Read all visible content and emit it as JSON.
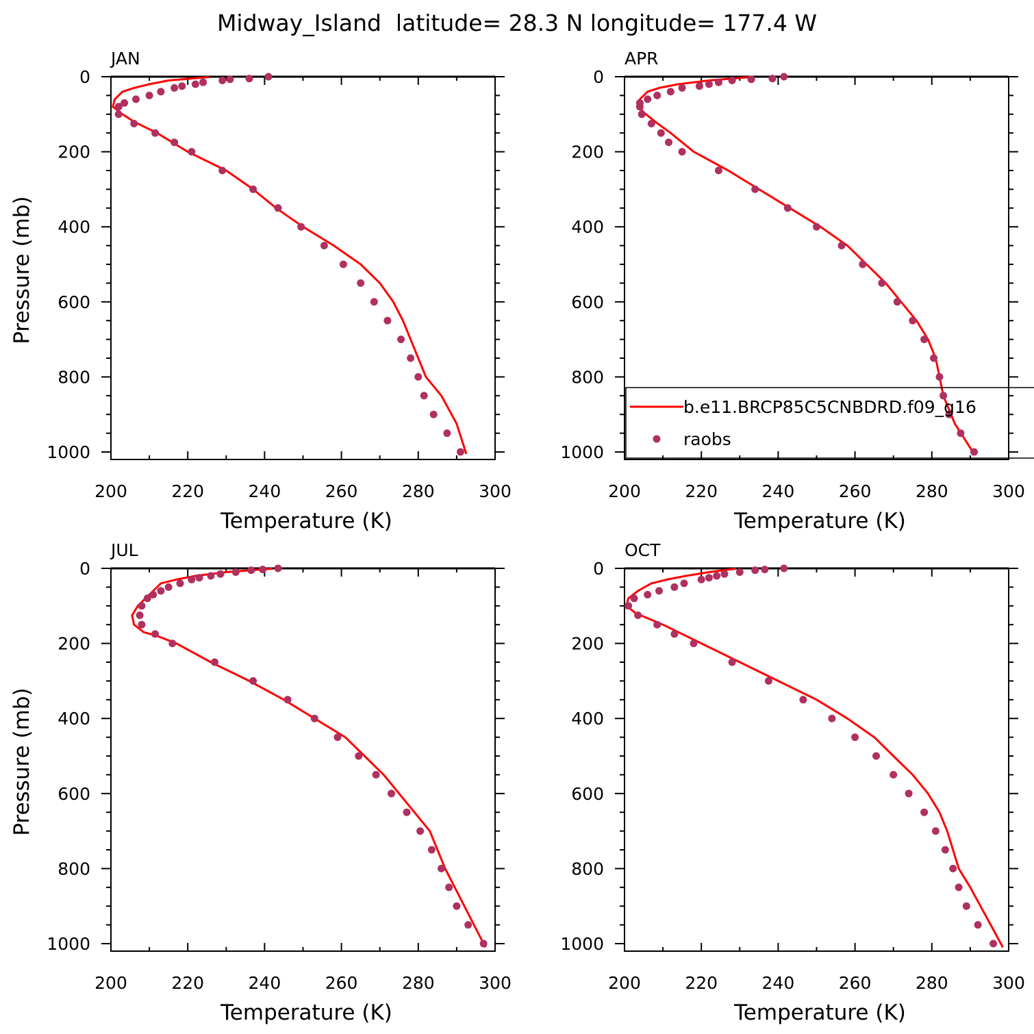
{
  "title": "Midway_Island  latitude= 28.3 N longitude= 177.4 W",
  "chart_data": [
    {
      "type": "line",
      "panel": "JAN",
      "xlabel": "Temperature (K)",
      "ylabel": "Pressure (mb)",
      "xlim": [
        200,
        300
      ],
      "ylim": [
        1020,
        0
      ],
      "xticks": [
        "200",
        "220",
        "240",
        "260",
        "280",
        "300"
      ],
      "yticks": [
        "0",
        "200",
        "400",
        "600",
        "800",
        "1000"
      ],
      "series": [
        {
          "name": "b.e11.BRCP85C5CNBDRD.f09_g16",
          "style": "line",
          "color": "#ff0000",
          "x": [
            225.5,
            215,
            210,
            206,
            203,
            201,
            200.5,
            203,
            206,
            212,
            220,
            230,
            237,
            243,
            250,
            258,
            265,
            270,
            273.5,
            276,
            278,
            280,
            282,
            286,
            290,
            292.5
          ],
          "y": [
            1,
            10,
            20,
            30,
            40,
            60,
            80,
            100,
            120,
            150,
            200,
            250,
            300,
            350,
            400,
            450,
            500,
            550,
            600,
            650,
            700,
            750,
            800,
            850,
            925,
            1005
          ]
        },
        {
          "name": "raobs",
          "style": "points",
          "color": "#b03060",
          "x": [
            241,
            236,
            231,
            229,
            224,
            222,
            218.5,
            216.5,
            213,
            210,
            206.5,
            203.5,
            202,
            202,
            206,
            211.5,
            216.5,
            221,
            229,
            237,
            243.5,
            249.5,
            255.5,
            260.5,
            265,
            268.5,
            272,
            275.5,
            278,
            280,
            281.5,
            284,
            287.5,
            291
          ],
          "y": [
            0,
            5,
            7,
            10,
            15,
            20,
            25,
            30,
            40,
            50,
            60,
            70,
            80,
            100,
            125,
            150,
            175,
            200,
            250,
            300,
            350,
            400,
            450,
            500,
            550,
            600,
            650,
            700,
            750,
            800,
            850,
            900,
            950,
            1000
          ]
        }
      ]
    },
    {
      "type": "line",
      "panel": "APR",
      "xlabel": "Temperature (K)",
      "ylabel": "",
      "xlim": [
        200,
        300
      ],
      "ylim": [
        1020,
        0
      ],
      "xticks": [
        "200",
        "220",
        "240",
        "260",
        "280",
        "300"
      ],
      "yticks": [
        "0",
        "200",
        "400",
        "600",
        "800",
        "1000"
      ],
      "series": [
        {
          "name": "b.e11.BRCP85C5CNBDRD.f09_g16",
          "style": "line",
          "color": "#ff0000",
          "x": [
            233,
            222,
            214,
            209,
            206,
            204,
            203.5,
            205,
            208,
            212,
            218,
            227,
            235,
            243,
            251,
            258,
            263,
            268,
            272,
            276,
            279,
            281,
            282,
            283,
            286,
            291
          ],
          "y": [
            1,
            10,
            20,
            30,
            40,
            60,
            75,
            95,
            120,
            150,
            200,
            250,
            300,
            350,
            400,
            450,
            500,
            550,
            600,
            650,
            700,
            750,
            800,
            850,
            925,
            1005
          ]
        },
        {
          "name": "raobs",
          "style": "points",
          "color": "#b03060",
          "x": [
            241.5,
            238.5,
            233,
            228,
            224.5,
            222,
            219.5,
            215,
            212,
            208.5,
            206,
            204,
            204,
            204.5,
            207,
            209.5,
            211.5,
            215,
            224.5,
            234,
            242.5,
            250,
            256.5,
            262,
            267,
            271,
            275,
            278,
            280.5,
            282,
            283,
            284.5,
            287.5,
            291
          ],
          "y": [
            0,
            5,
            7,
            10,
            15,
            20,
            25,
            30,
            40,
            50,
            60,
            70,
            80,
            100,
            125,
            150,
            175,
            200,
            250,
            300,
            350,
            400,
            450,
            500,
            550,
            600,
            650,
            700,
            750,
            800,
            850,
            900,
            950,
            1000
          ]
        }
      ],
      "legend": {
        "position": "bottom-right",
        "entries": [
          "b.e11.BRCP85C5CNBDRD.f09_g16",
          "raobs"
        ]
      }
    },
    {
      "type": "line",
      "panel": "JUL",
      "xlabel": "Temperature (K)",
      "ylabel": "Pressure (mb)",
      "xlim": [
        200,
        300
      ],
      "ylim": [
        1020,
        0
      ],
      "xticks": [
        "200",
        "220",
        "240",
        "260",
        "280",
        "300"
      ],
      "yticks": [
        "0",
        "200",
        "400",
        "600",
        "800",
        "1000"
      ],
      "series": [
        {
          "name": "b.e11.BRCP85C5CNBDRD.f09_g16",
          "style": "line",
          "color": "#ff0000",
          "x": [
            242,
            230,
            222,
            217,
            213,
            211,
            209,
            207,
            205.5,
            206,
            208.5,
            212,
            217,
            226,
            236,
            245,
            253,
            261,
            266,
            271,
            275,
            279,
            283,
            287,
            292,
            297.5
          ],
          "y": [
            1,
            10,
            20,
            30,
            40,
            60,
            80,
            100,
            125,
            150,
            170,
            180,
            200,
            250,
            300,
            350,
            400,
            450,
            500,
            550,
            600,
            650,
            700,
            800,
            900,
            1010
          ]
        },
        {
          "name": "raobs",
          "style": "points",
          "color": "#b03060",
          "x": [
            243.5,
            239.5,
            236.5,
            232.5,
            228.5,
            226,
            223,
            221,
            218,
            215,
            213,
            211,
            209.5,
            208,
            207.5,
            208,
            211.5,
            216,
            227,
            237,
            246,
            253,
            259,
            264.5,
            269,
            273,
            277,
            280.5,
            283.5,
            286,
            288,
            290,
            293,
            297
          ],
          "y": [
            0,
            3,
            5,
            10,
            15,
            20,
            25,
            30,
            40,
            50,
            60,
            70,
            80,
            100,
            125,
            150,
            175,
            200,
            250,
            300,
            350,
            400,
            450,
            500,
            550,
            600,
            650,
            700,
            750,
            800,
            850,
            900,
            950,
            1000
          ]
        }
      ]
    },
    {
      "type": "line",
      "panel": "OCT",
      "xlabel": "Temperature (K)",
      "ylabel": "",
      "xlim": [
        200,
        300
      ],
      "ylim": [
        1020,
        0
      ],
      "xticks": [
        "200",
        "220",
        "240",
        "260",
        "280",
        "300"
      ],
      "yticks": [
        "0",
        "200",
        "400",
        "600",
        "800",
        "1000"
      ],
      "series": [
        {
          "name": "b.e11.BRCP85C5CNBDRD.f09_g16",
          "style": "line",
          "color": "#ff0000",
          "x": [
            229,
            222,
            216,
            211,
            207,
            203.5,
            201,
            200.5,
            203,
            210,
            220,
            230,
            240,
            250,
            258,
            265,
            270,
            275,
            279,
            282,
            284,
            285.5,
            287,
            290,
            294,
            298.5
          ],
          "y": [
            1,
            10,
            20,
            30,
            40,
            60,
            80,
            100,
            120,
            150,
            200,
            250,
            300,
            350,
            400,
            450,
            500,
            550,
            600,
            650,
            700,
            750,
            800,
            850,
            925,
            1010
          ]
        },
        {
          "name": "raobs",
          "style": "points",
          "color": "#b03060",
          "x": [
            241.5,
            236.5,
            234,
            230,
            226,
            224,
            222,
            220,
            215.5,
            213,
            209,
            206,
            202.5,
            201,
            203.5,
            208.5,
            213,
            218,
            228,
            237.5,
            246.5,
            254,
            260,
            265.5,
            270,
            274,
            278,
            281,
            283.5,
            285.5,
            287,
            289,
            292,
            296
          ],
          "y": [
            0,
            3,
            5,
            10,
            15,
            20,
            25,
            30,
            40,
            50,
            60,
            70,
            80,
            100,
            125,
            150,
            175,
            200,
            250,
            300,
            350,
            400,
            450,
            500,
            550,
            600,
            650,
            700,
            750,
            800,
            850,
            900,
            950,
            1000
          ]
        }
      ]
    }
  ]
}
